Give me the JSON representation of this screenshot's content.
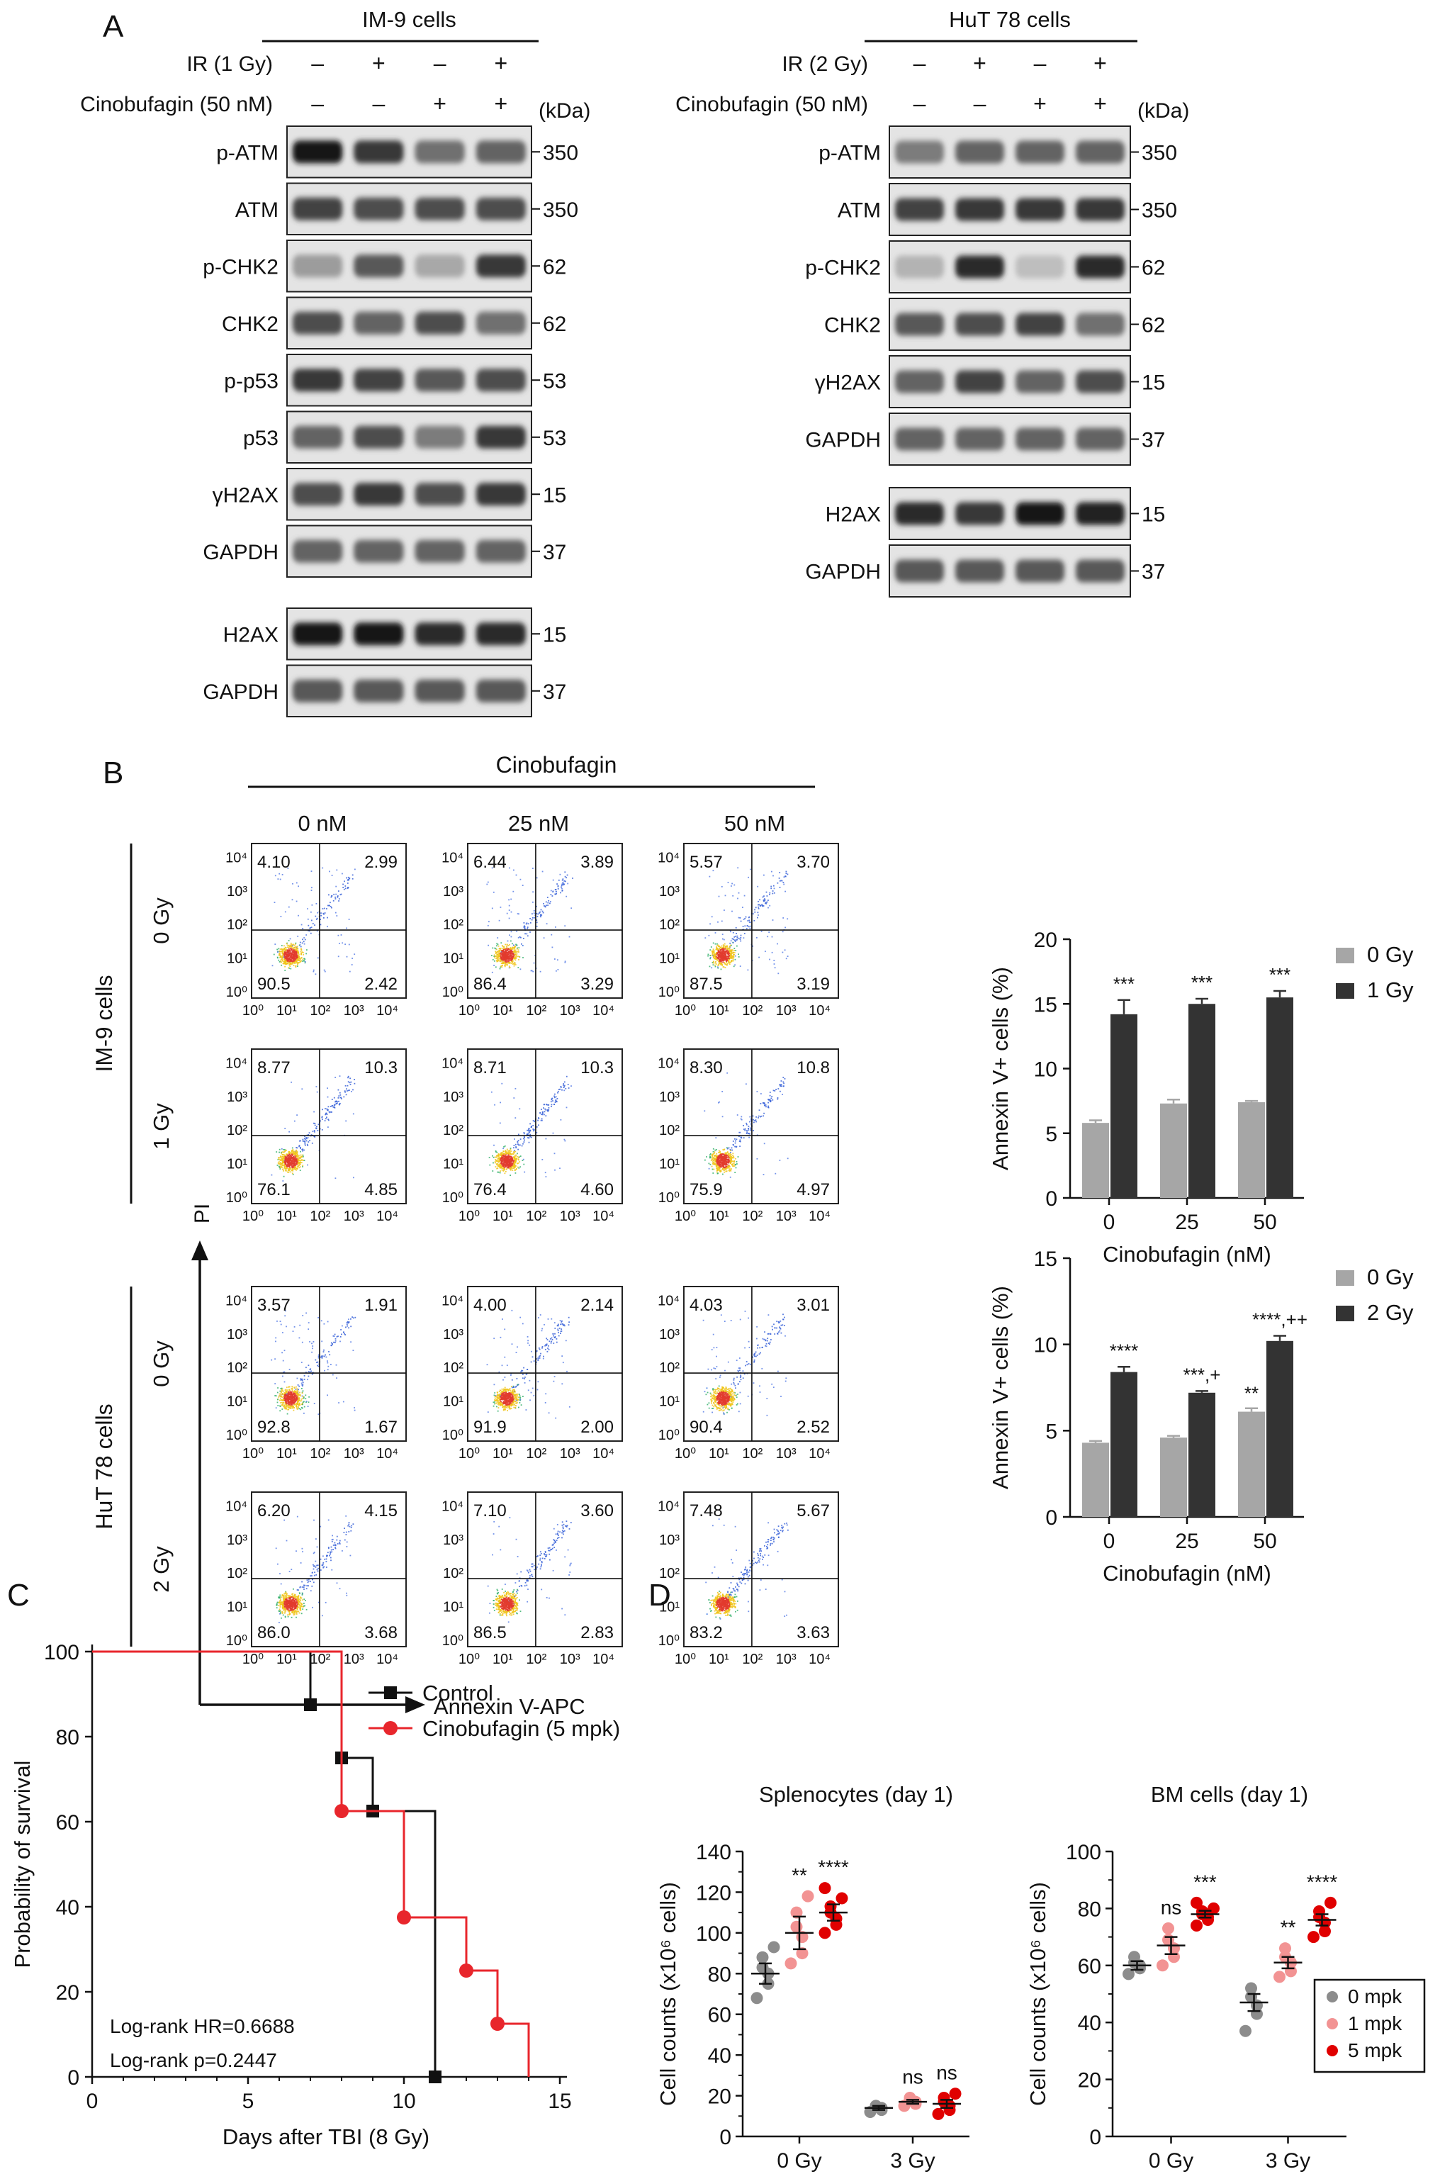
{
  "panel_letters": [
    "A",
    "B",
    "C",
    "D"
  ],
  "panel_a": {
    "left": {
      "cell_label": "IM-9 cells",
      "treatments": [
        {
          "label": "IR (1 Gy)",
          "signs": [
            "–",
            "+",
            "–",
            "+"
          ]
        },
        {
          "label": "Cinobufagin (50 nM)",
          "signs": [
            "–",
            "–",
            "+",
            "+"
          ]
        }
      ],
      "kda_header": "(kDa)",
      "group1": [
        {
          "name": "p-ATM",
          "kda": "350",
          "intensity": [
            0.95,
            0.8,
            0.55,
            0.6
          ]
        },
        {
          "name": "ATM",
          "kda": "350",
          "intensity": [
            0.75,
            0.7,
            0.7,
            0.7
          ]
        },
        {
          "name": "p-CHK2",
          "kda": "62",
          "intensity": [
            0.35,
            0.65,
            0.3,
            0.8
          ]
        },
        {
          "name": "CHK2",
          "kda": "62",
          "intensity": [
            0.7,
            0.6,
            0.7,
            0.55
          ]
        },
        {
          "name": "p-p53",
          "kda": "53",
          "intensity": [
            0.8,
            0.75,
            0.65,
            0.7
          ]
        },
        {
          "name": "p53",
          "kda": "53",
          "intensity": [
            0.6,
            0.7,
            0.5,
            0.8
          ]
        },
        {
          "name": "γH2AX",
          "kda": "15",
          "intensity": [
            0.7,
            0.8,
            0.7,
            0.8
          ]
        },
        {
          "name": "GAPDH",
          "kda": "37",
          "intensity": [
            0.6,
            0.6,
            0.6,
            0.6
          ]
        }
      ],
      "group2": [
        {
          "name": "H2AX",
          "kda": "15",
          "intensity": [
            0.95,
            0.95,
            0.85,
            0.85
          ]
        },
        {
          "name": "GAPDH",
          "kda": "37",
          "intensity": [
            0.65,
            0.65,
            0.65,
            0.65
          ]
        }
      ]
    },
    "right": {
      "cell_label": "HuT 78 cells",
      "treatments": [
        {
          "label": "IR (2 Gy)",
          "signs": [
            "–",
            "+",
            "–",
            "+"
          ]
        },
        {
          "label": "Cinobufagin (50 nM)",
          "signs": [
            "–",
            "–",
            "+",
            "+"
          ]
        }
      ],
      "kda_header": "(kDa)",
      "group1": [
        {
          "name": "p-ATM",
          "kda": "350",
          "intensity": [
            0.5,
            0.6,
            0.6,
            0.6
          ]
        },
        {
          "name": "ATM",
          "kda": "350",
          "intensity": [
            0.75,
            0.8,
            0.8,
            0.8
          ]
        },
        {
          "name": "p-CHK2",
          "kda": "62",
          "intensity": [
            0.25,
            0.85,
            0.2,
            0.85
          ]
        },
        {
          "name": "CHK2",
          "kda": "62",
          "intensity": [
            0.65,
            0.7,
            0.75,
            0.55
          ]
        },
        {
          "name": "γH2AX",
          "kda": "15",
          "intensity": [
            0.6,
            0.75,
            0.6,
            0.7
          ]
        },
        {
          "name": "GAPDH",
          "kda": "37",
          "intensity": [
            0.6,
            0.6,
            0.6,
            0.6
          ]
        }
      ],
      "group2": [
        {
          "name": "H2AX",
          "kda": "15",
          "intensity": [
            0.85,
            0.8,
            0.95,
            0.9
          ]
        },
        {
          "name": "GAPDH",
          "kda": "37",
          "intensity": [
            0.65,
            0.65,
            0.65,
            0.65
          ]
        }
      ]
    }
  },
  "panel_b": {
    "header": "Cinobufagin",
    "concentrations": [
      "0 nM",
      "25 nM",
      "50 nM"
    ],
    "x_axis_label": "Annexin V-APC",
    "y_axis_label": "PI",
    "tick_labels": [
      "10⁰",
      "10¹",
      "10²",
      "10³",
      "10⁴"
    ],
    "cell_groups": [
      {
        "label": "IM-9 cells",
        "rows": [
          {
            "dose": "0 Gy",
            "plots": [
              {
                "ul": "4.10",
                "ur": "2.99",
                "ll": "90.5",
                "lr": "2.42"
              },
              {
                "ul": "6.44",
                "ur": "3.89",
                "ll": "86.4",
                "lr": "3.29"
              },
              {
                "ul": "5.57",
                "ur": "3.70",
                "ll": "87.5",
                "lr": "3.19"
              }
            ]
          },
          {
            "dose": "1 Gy",
            "plots": [
              {
                "ul": "8.77",
                "ur": "10.3",
                "ll": "76.1",
                "lr": "4.85"
              },
              {
                "ul": "8.71",
                "ur": "10.3",
                "ll": "76.4",
                "lr": "4.60"
              },
              {
                "ul": "8.30",
                "ur": "10.8",
                "ll": "75.9",
                "lr": "4.97"
              }
            ]
          }
        ]
      },
      {
        "label": "HuT 78 cells",
        "rows": [
          {
            "dose": "0 Gy",
            "plots": [
              {
                "ul": "3.57",
                "ur": "1.91",
                "ll": "92.8",
                "lr": "1.67"
              },
              {
                "ul": "4.00",
                "ur": "2.14",
                "ll": "91.9",
                "lr": "2.00"
              },
              {
                "ul": "4.03",
                "ur": "3.01",
                "ll": "90.4",
                "lr": "2.52"
              }
            ]
          },
          {
            "dose": "2 Gy",
            "plots": [
              {
                "ul": "6.20",
                "ur": "4.15",
                "ll": "86.0",
                "lr": "3.68"
              },
              {
                "ul": "7.10",
                "ur": "3.60",
                "ll": "86.5",
                "lr": "2.83"
              },
              {
                "ul": "7.48",
                "ur": "5.67",
                "ll": "83.2",
                "lr": "3.63"
              }
            ]
          }
        ]
      }
    ]
  },
  "chart_data": [
    {
      "type": "bar",
      "panel": "B",
      "categories": [
        "0",
        "25",
        "50"
      ],
      "series": [
        {
          "name": "0 Gy",
          "color": "#a6a6a6",
          "values": [
            5.8,
            7.3,
            7.4
          ],
          "errors": [
            0.2,
            0.3,
            0.1
          ]
        },
        {
          "name": "1 Gy",
          "color": "#333333",
          "values": [
            14.2,
            15.0,
            15.5
          ],
          "errors": [
            1.1,
            0.4,
            0.5
          ]
        }
      ],
      "annotations": [
        "***",
        "***",
        "***"
      ],
      "xlabel": "Cinobufagin (nM)",
      "ylabel": "Annexin V+ cells (%)",
      "ylim": [
        0,
        20
      ],
      "yticks": [
        "0",
        "5",
        "10",
        "15",
        "20"
      ],
      "legend": "top-right"
    },
    {
      "type": "bar",
      "panel": "B",
      "categories": [
        "0",
        "25",
        "50"
      ],
      "series": [
        {
          "name": "0 Gy",
          "color": "#a6a6a6",
          "values": [
            4.3,
            4.6,
            6.1
          ],
          "errors": [
            0.1,
            0.1,
            0.2
          ]
        },
        {
          "name": "2 Gy",
          "color": "#333333",
          "values": [
            8.4,
            7.2,
            10.2
          ],
          "errors": [
            0.3,
            0.1,
            0.3
          ]
        }
      ],
      "annotations": [
        "****",
        "***,+",
        "****,++"
      ],
      "extra_annotations": [
        {
          "category": "50",
          "series": "0 Gy",
          "text": "**"
        }
      ],
      "xlabel": "Cinobufagin (nM)",
      "ylabel": "Annexin V+ cells (%)",
      "ylim": [
        0,
        15
      ],
      "yticks": [
        "0",
        "5",
        "10",
        "15"
      ],
      "legend": "top-right"
    },
    {
      "type": "line",
      "subtype": "kaplan-meier",
      "panel": "C",
      "series": [
        {
          "name": "Control",
          "color": "#111111",
          "marker": "square",
          "steps": [
            [
              0,
              100
            ],
            [
              7,
              87.5
            ],
            [
              8,
              75
            ],
            [
              9,
              62.5
            ],
            [
              11,
              0
            ]
          ],
          "markers": [
            [
              7,
              87.5
            ],
            [
              8,
              75
            ],
            [
              9,
              62.5
            ],
            [
              11,
              0
            ]
          ]
        },
        {
          "name": "Cinobufagin (5 mpk)",
          "color": "#e8262c",
          "marker": "circle",
          "steps": [
            [
              0,
              100
            ],
            [
              8,
              62.5
            ],
            [
              10,
              37.5
            ],
            [
              12,
              25
            ],
            [
              13,
              12.5
            ],
            [
              14,
              0
            ]
          ],
          "markers": [
            [
              8,
              62.5
            ],
            [
              10,
              37.5
            ],
            [
              12,
              25
            ],
            [
              13,
              12.5
            ]
          ]
        }
      ],
      "annotations": [
        "Log-rank HR=0.6688",
        "Log-rank p=0.2447"
      ],
      "xlabel": "Days after TBI (8 Gy)",
      "ylabel": "Probability of survival",
      "xlim": [
        0,
        15
      ],
      "ylim": [
        0,
        100
      ],
      "xticks": [
        "0",
        "5",
        "10",
        "15"
      ],
      "yticks": [
        "0",
        "20",
        "40",
        "60",
        "80",
        "100"
      ],
      "legend": "top-right"
    },
    {
      "type": "scatter",
      "panel": "D",
      "title": "Splenocytes (day 1)",
      "categories": [
        "0 Gy",
        "3 Gy"
      ],
      "ylabel": "Cell counts (x10⁶ cells)",
      "ylim": [
        0,
        140
      ],
      "yticks": [
        "0",
        "20",
        "40",
        "60",
        "80",
        "100",
        "120",
        "140"
      ],
      "groups": [
        {
          "name": "0 mpk",
          "color": "#8c8c8c",
          "points": {
            "0 Gy": [
              68,
              75,
              80,
              83,
              88,
              93
            ],
            "3 Gy": [
              12,
              13,
              14,
              15,
              15
            ]
          },
          "mean": {
            "0 Gy": 80,
            "3 Gy": 14
          },
          "sem": {
            "0 Gy": 5,
            "3 Gy": 1
          }
        },
        {
          "name": "1 mpk",
          "color": "#f29393",
          "points": {
            "0 Gy": [
              85,
              90,
              98,
              103,
              110,
              118
            ],
            "3 Gy": [
              15,
              16,
              17,
              18,
              19
            ]
          },
          "mean": {
            "0 Gy": 100,
            "3 Gy": 17
          },
          "sem": {
            "0 Gy": 8,
            "3 Gy": 1
          }
        },
        {
          "name": "5 mpk",
          "color": "#e00000",
          "points": {
            "0 Gy": [
              100,
              104,
              107,
              110,
              113,
              117,
              122
            ],
            "3 Gy": [
              11,
              13,
              15,
              17,
              19,
              21
            ]
          },
          "mean": {
            "0 Gy": 110,
            "3 Gy": 16
          },
          "sem": {
            "0 Gy": 4,
            "3 Gy": 2
          }
        }
      ],
      "annotations": {
        "0 Gy": [
          "",
          "**",
          "****"
        ],
        "3 Gy": [
          "",
          "ns",
          "ns"
        ]
      }
    },
    {
      "type": "scatter",
      "panel": "D",
      "title": "BM cells (day 1)",
      "categories": [
        "0 Gy",
        "3 Gy"
      ],
      "ylabel": "Cell counts (x10⁶ cells)",
      "ylim": [
        0,
        100
      ],
      "yticks": [
        "0",
        "20",
        "40",
        "60",
        "80",
        "100"
      ],
      "groups": [
        {
          "name": "0 mpk",
          "color": "#8c8c8c",
          "points": {
            "0 Gy": [
              57,
              59,
              60,
              61,
              63
            ],
            "3 Gy": [
              37,
              43,
              46,
              49,
              52
            ]
          },
          "mean": {
            "0 Gy": 60,
            "3 Gy": 47
          },
          "sem": {
            "0 Gy": 1.5,
            "3 Gy": 3
          }
        },
        {
          "name": "1 mpk",
          "color": "#f29393",
          "points": {
            "0 Gy": [
              60,
              63,
              66,
              69,
              73
            ],
            "3 Gy": [
              56,
              58,
              61,
              63,
              66
            ]
          },
          "mean": {
            "0 Gy": 67,
            "3 Gy": 61
          },
          "sem": {
            "0 Gy": 3,
            "3 Gy": 2
          }
        },
        {
          "name": "5 mpk",
          "color": "#e00000",
          "points": {
            "0 Gy": [
              74,
              76,
              77,
              78,
              79,
              80,
              82
            ],
            "3 Gy": [
              70,
              72,
              75,
              77,
              79,
              82
            ]
          },
          "mean": {
            "0 Gy": 78,
            "3 Gy": 76
          },
          "sem": {
            "0 Gy": 1.2,
            "3 Gy": 2
          }
        }
      ],
      "annotations": {
        "0 Gy": [
          "",
          "ns",
          "***"
        ],
        "3 Gy": [
          "",
          "**",
          "****"
        ]
      },
      "legend": "bottom-right",
      "legend_labels": [
        "0 mpk",
        "1 mpk",
        "5 mpk"
      ]
    }
  ]
}
